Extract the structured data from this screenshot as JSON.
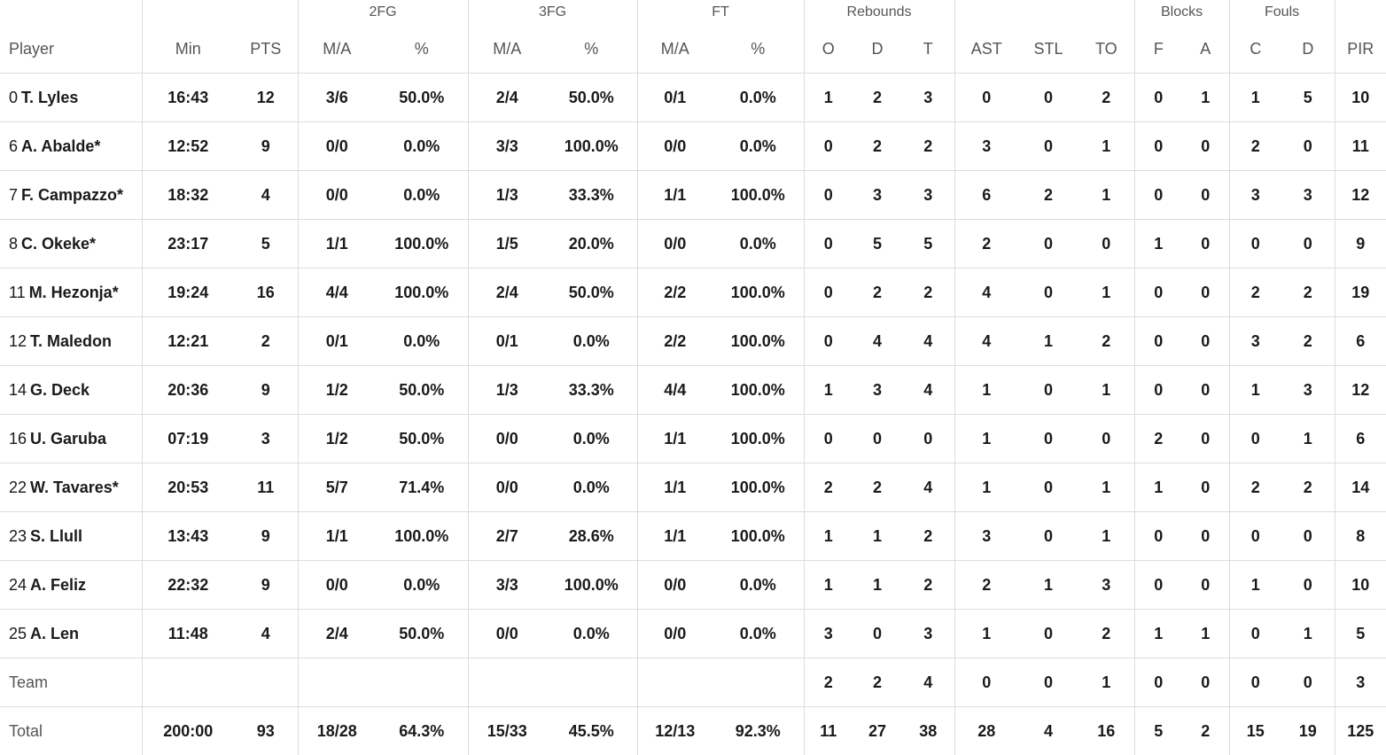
{
  "groups": {
    "fg2": "2FG",
    "fg3": "3FG",
    "ft": "FT",
    "rebounds": "Rebounds",
    "blocks": "Blocks",
    "fouls": "Fouls"
  },
  "columns": {
    "player": "Player",
    "min": "Min",
    "pts": "PTS",
    "fg2_ma": "M/A",
    "fg2_pct": "%",
    "fg3_ma": "M/A",
    "fg3_pct": "%",
    "ft_ma": "M/A",
    "ft_pct": "%",
    "reb_o": "O",
    "reb_d": "D",
    "reb_t": "T",
    "ast": "AST",
    "stl": "STL",
    "to": "TO",
    "blk_f": "F",
    "blk_a": "A",
    "foul_c": "C",
    "foul_d": "D",
    "pir": "PIR"
  },
  "players": [
    {
      "num": "0",
      "name": "T. Lyles",
      "min": "16:43",
      "pts": "12",
      "fg2_ma": "3/6",
      "fg2_pct": "50.0%",
      "fg3_ma": "2/4",
      "fg3_pct": "50.0%",
      "ft_ma": "0/1",
      "ft_pct": "0.0%",
      "reb_o": "1",
      "reb_d": "2",
      "reb_t": "3",
      "ast": "0",
      "stl": "0",
      "to": "2",
      "blk_f": "0",
      "blk_a": "1",
      "foul_c": "1",
      "foul_d": "5",
      "pir": "10"
    },
    {
      "num": "6",
      "name": "A. Abalde*",
      "min": "12:52",
      "pts": "9",
      "fg2_ma": "0/0",
      "fg2_pct": "0.0%",
      "fg3_ma": "3/3",
      "fg3_pct": "100.0%",
      "ft_ma": "0/0",
      "ft_pct": "0.0%",
      "reb_o": "0",
      "reb_d": "2",
      "reb_t": "2",
      "ast": "3",
      "stl": "0",
      "to": "1",
      "blk_f": "0",
      "blk_a": "0",
      "foul_c": "2",
      "foul_d": "0",
      "pir": "11"
    },
    {
      "num": "7",
      "name": "F. Campazzo*",
      "min": "18:32",
      "pts": "4",
      "fg2_ma": "0/0",
      "fg2_pct": "0.0%",
      "fg3_ma": "1/3",
      "fg3_pct": "33.3%",
      "ft_ma": "1/1",
      "ft_pct": "100.0%",
      "reb_o": "0",
      "reb_d": "3",
      "reb_t": "3",
      "ast": "6",
      "stl": "2",
      "to": "1",
      "blk_f": "0",
      "blk_a": "0",
      "foul_c": "3",
      "foul_d": "3",
      "pir": "12"
    },
    {
      "num": "8",
      "name": "C. Okeke*",
      "min": "23:17",
      "pts": "5",
      "fg2_ma": "1/1",
      "fg2_pct": "100.0%",
      "fg3_ma": "1/5",
      "fg3_pct": "20.0%",
      "ft_ma": "0/0",
      "ft_pct": "0.0%",
      "reb_o": "0",
      "reb_d": "5",
      "reb_t": "5",
      "ast": "2",
      "stl": "0",
      "to": "0",
      "blk_f": "1",
      "blk_a": "0",
      "foul_c": "0",
      "foul_d": "0",
      "pir": "9"
    },
    {
      "num": "11",
      "name": "M. Hezonja*",
      "min": "19:24",
      "pts": "16",
      "fg2_ma": "4/4",
      "fg2_pct": "100.0%",
      "fg3_ma": "2/4",
      "fg3_pct": "50.0%",
      "ft_ma": "2/2",
      "ft_pct": "100.0%",
      "reb_o": "0",
      "reb_d": "2",
      "reb_t": "2",
      "ast": "4",
      "stl": "0",
      "to": "1",
      "blk_f": "0",
      "blk_a": "0",
      "foul_c": "2",
      "foul_d": "2",
      "pir": "19"
    },
    {
      "num": "12",
      "name": "T. Maledon",
      "min": "12:21",
      "pts": "2",
      "fg2_ma": "0/1",
      "fg2_pct": "0.0%",
      "fg3_ma": "0/1",
      "fg3_pct": "0.0%",
      "ft_ma": "2/2",
      "ft_pct": "100.0%",
      "reb_o": "0",
      "reb_d": "4",
      "reb_t": "4",
      "ast": "4",
      "stl": "1",
      "to": "2",
      "blk_f": "0",
      "blk_a": "0",
      "foul_c": "3",
      "foul_d": "2",
      "pir": "6"
    },
    {
      "num": "14",
      "name": "G. Deck",
      "min": "20:36",
      "pts": "9",
      "fg2_ma": "1/2",
      "fg2_pct": "50.0%",
      "fg3_ma": "1/3",
      "fg3_pct": "33.3%",
      "ft_ma": "4/4",
      "ft_pct": "100.0%",
      "reb_o": "1",
      "reb_d": "3",
      "reb_t": "4",
      "ast": "1",
      "stl": "0",
      "to": "1",
      "blk_f": "0",
      "blk_a": "0",
      "foul_c": "1",
      "foul_d": "3",
      "pir": "12"
    },
    {
      "num": "16",
      "name": "U. Garuba",
      "min": "07:19",
      "pts": "3",
      "fg2_ma": "1/2",
      "fg2_pct": "50.0%",
      "fg3_ma": "0/0",
      "fg3_pct": "0.0%",
      "ft_ma": "1/1",
      "ft_pct": "100.0%",
      "reb_o": "0",
      "reb_d": "0",
      "reb_t": "0",
      "ast": "1",
      "stl": "0",
      "to": "0",
      "blk_f": "2",
      "blk_a": "0",
      "foul_c": "0",
      "foul_d": "1",
      "pir": "6"
    },
    {
      "num": "22",
      "name": "W. Tavares*",
      "min": "20:53",
      "pts": "11",
      "fg2_ma": "5/7",
      "fg2_pct": "71.4%",
      "fg3_ma": "0/0",
      "fg3_pct": "0.0%",
      "ft_ma": "1/1",
      "ft_pct": "100.0%",
      "reb_o": "2",
      "reb_d": "2",
      "reb_t": "4",
      "ast": "1",
      "stl": "0",
      "to": "1",
      "blk_f": "1",
      "blk_a": "0",
      "foul_c": "2",
      "foul_d": "2",
      "pir": "14"
    },
    {
      "num": "23",
      "name": "S. Llull",
      "min": "13:43",
      "pts": "9",
      "fg2_ma": "1/1",
      "fg2_pct": "100.0%",
      "fg3_ma": "2/7",
      "fg3_pct": "28.6%",
      "ft_ma": "1/1",
      "ft_pct": "100.0%",
      "reb_o": "1",
      "reb_d": "1",
      "reb_t": "2",
      "ast": "3",
      "stl": "0",
      "to": "1",
      "blk_f": "0",
      "blk_a": "0",
      "foul_c": "0",
      "foul_d": "0",
      "pir": "8"
    },
    {
      "num": "24",
      "name": "A. Feliz",
      "min": "22:32",
      "pts": "9",
      "fg2_ma": "0/0",
      "fg2_pct": "0.0%",
      "fg3_ma": "3/3",
      "fg3_pct": "100.0%",
      "ft_ma": "0/0",
      "ft_pct": "0.0%",
      "reb_o": "1",
      "reb_d": "1",
      "reb_t": "2",
      "ast": "2",
      "stl": "1",
      "to": "3",
      "blk_f": "0",
      "blk_a": "0",
      "foul_c": "1",
      "foul_d": "0",
      "pir": "10"
    },
    {
      "num": "25",
      "name": "A. Len",
      "min": "11:48",
      "pts": "4",
      "fg2_ma": "2/4",
      "fg2_pct": "50.0%",
      "fg3_ma": "0/0",
      "fg3_pct": "0.0%",
      "ft_ma": "0/0",
      "ft_pct": "0.0%",
      "reb_o": "3",
      "reb_d": "0",
      "reb_t": "3",
      "ast": "1",
      "stl": "0",
      "to": "2",
      "blk_f": "1",
      "blk_a": "1",
      "foul_c": "0",
      "foul_d": "1",
      "pir": "5"
    }
  ],
  "team": {
    "label": "Team",
    "reb_o": "2",
    "reb_d": "2",
    "reb_t": "4",
    "ast": "0",
    "stl": "0",
    "to": "1",
    "blk_f": "0",
    "blk_a": "0",
    "foul_c": "0",
    "foul_d": "0",
    "pir": "3"
  },
  "total": {
    "label": "Total",
    "min": "200:00",
    "pts": "93",
    "fg2_ma": "18/28",
    "fg2_pct": "64.3%",
    "fg3_ma": "15/33",
    "fg3_pct": "45.5%",
    "ft_ma": "12/13",
    "ft_pct": "92.3%",
    "reb_o": "11",
    "reb_d": "27",
    "reb_t": "38",
    "ast": "28",
    "stl": "4",
    "to": "16",
    "blk_f": "5",
    "blk_a": "2",
    "foul_c": "15",
    "foul_d": "19",
    "pir": "125"
  }
}
